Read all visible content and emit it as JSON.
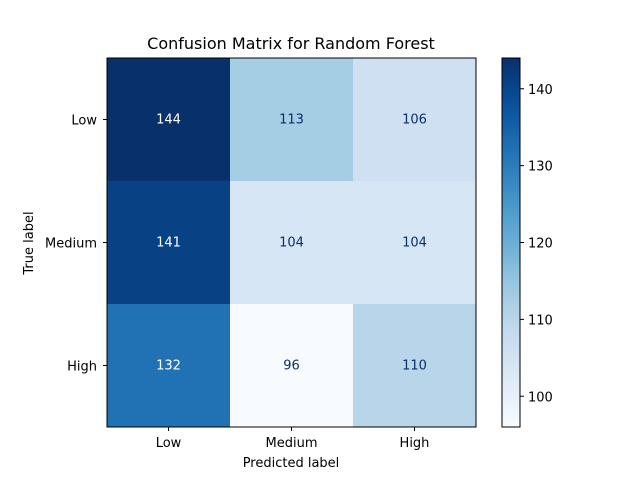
{
  "chart_data": {
    "type": "heatmap",
    "title": "Confusion Matrix for Random Forest",
    "xlabel": "Predicted label",
    "ylabel": "True label",
    "x_categories": [
      "Low",
      "Medium",
      "High"
    ],
    "y_categories": [
      "Low",
      "Medium",
      "High"
    ],
    "matrix": [
      [
        144,
        113,
        106
      ],
      [
        141,
        104,
        104
      ],
      [
        132,
        96,
        110
      ]
    ],
    "colormap": "Blues",
    "color_range": [
      96,
      144
    ],
    "colorbar_ticks": [
      100,
      110,
      120,
      130,
      140
    ],
    "text_color_dark_cell": "#ffffff",
    "text_color_light_cell": "#08306b"
  }
}
